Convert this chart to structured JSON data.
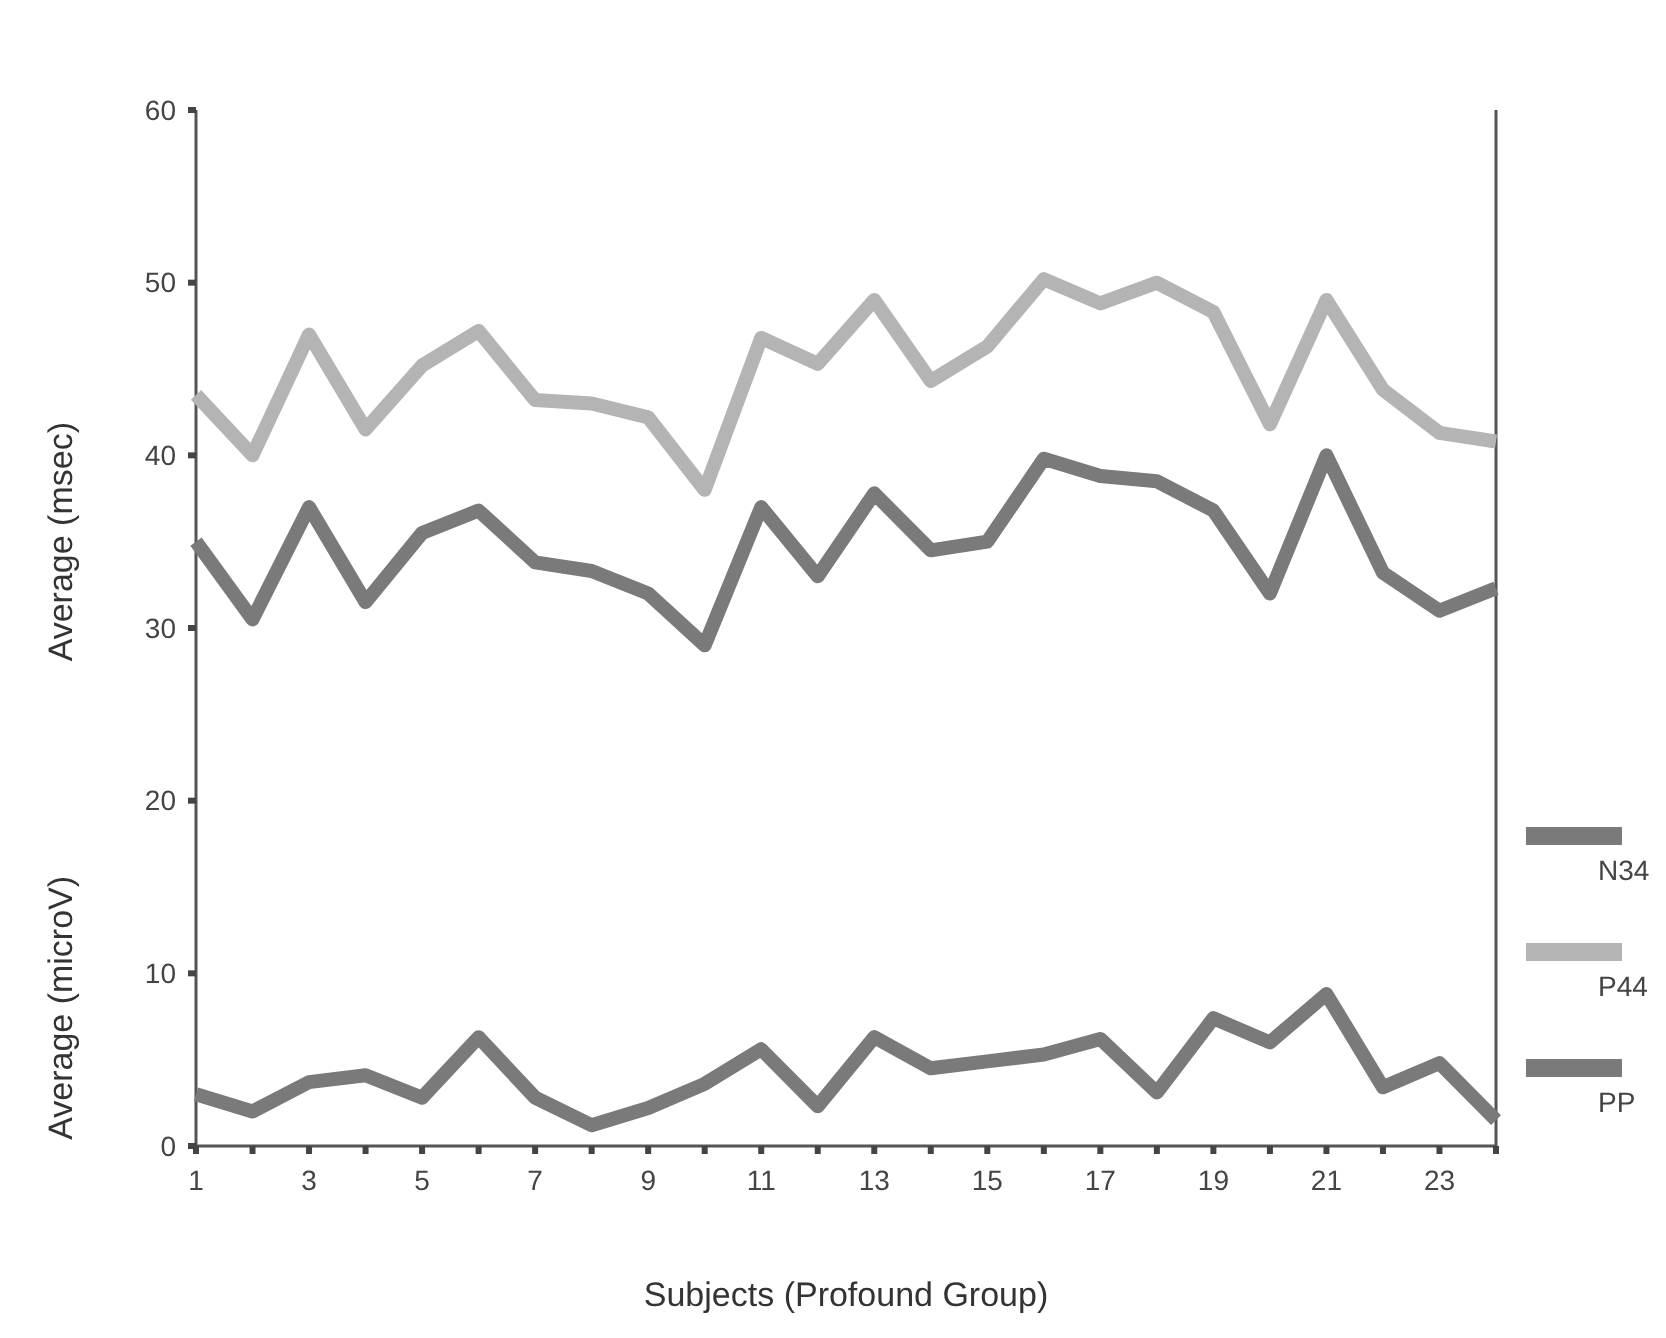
{
  "chart_data": {
    "type": "line",
    "xlabel": "Subjects (Profound Group)",
    "ylabel": "Average (msec)",
    "annotations": [
      "Average (microV)"
    ],
    "x": [
      1,
      2,
      3,
      4,
      5,
      6,
      7,
      8,
      9,
      10,
      11,
      12,
      13,
      14,
      15,
      16,
      17,
      18,
      19,
      20,
      21,
      22,
      23,
      24
    ],
    "xlim": [
      1,
      24
    ],
    "xticks": [
      1,
      {
        "value": 2,
        "label": null
      },
      3,
      {
        "value": 4,
        "label": null
      },
      5,
      {
        "value": 6,
        "label": null
      },
      7,
      {
        "value": 8,
        "label": null
      },
      9,
      {
        "value": 10,
        "label": null
      },
      11,
      {
        "value": 12,
        "label": null
      },
      13,
      {
        "value": 14,
        "label": null
      },
      15,
      {
        "value": 16,
        "label": null
      },
      17,
      {
        "value": 18,
        "label": null
      },
      19,
      {
        "value": 20,
        "label": null
      },
      21,
      {
        "value": 22,
        "label": null
      },
      23,
      {
        "value": 24,
        "label": null
      }
    ],
    "ylim": [
      0,
      60
    ],
    "yticks": [
      0,
      10,
      20,
      30,
      40,
      50,
      60
    ],
    "grid": false,
    "legend": "right",
    "marker": "none",
    "line_style": "solid",
    "series": [
      {
        "name": "N34",
        "color": "#7a7a7a",
        "values": [
          35,
          30.5,
          37,
          31.5,
          35.5,
          36.8,
          33.8,
          33.3,
          32,
          29,
          37,
          33,
          37.8,
          34.5,
          35,
          39.8,
          38.8,
          38.5,
          36.8,
          32,
          40,
          33.2,
          31,
          32.3
        ]
      },
      {
        "name": "P44",
        "color": "#b4b4b4",
        "values": [
          43.5,
          40,
          47,
          41.5,
          45.2,
          47.2,
          43.2,
          43,
          42.2,
          38,
          46.8,
          45.3,
          49,
          44.3,
          46.3,
          50.2,
          48.8,
          50,
          48.3,
          41.8,
          49,
          43.8,
          41.3,
          40.8
        ]
      },
      {
        "name": "PP",
        "color": "#7a7a7a",
        "values": [
          3,
          2,
          3.7,
          4.1,
          2.8,
          6.3,
          2.8,
          1.2,
          2.2,
          3.6,
          5.6,
          2.3,
          6.3,
          4.5,
          4.9,
          5.3,
          6.2,
          3.1,
          7.4,
          6,
          8.8,
          3.4,
          4.8,
          1.5
        ]
      }
    ]
  }
}
